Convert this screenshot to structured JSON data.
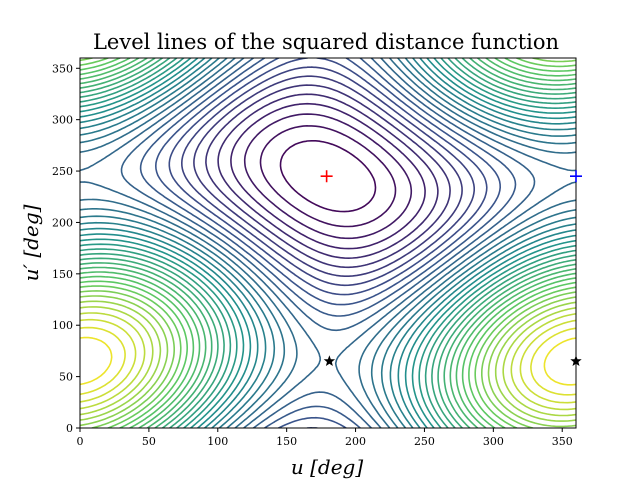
{
  "chart_data": {
    "type": "contour",
    "title": "Level lines of the squared distance function",
    "xlabel": "u [deg]",
    "ylabel": "u′ [deg]",
    "xlim": [
      0,
      360
    ],
    "ylim": [
      0,
      360
    ],
    "xticks": [
      "0",
      "50",
      "100",
      "150",
      "200",
      "250",
      "300",
      "350"
    ],
    "yticks": [
      "0",
      "50",
      "100",
      "150",
      "200",
      "250",
      "300",
      "350"
    ],
    "colormap": [
      "#440154",
      "#3b528b",
      "#21918c",
      "#5ec962",
      "#fde725"
    ],
    "grid": false,
    "markers": [
      {
        "name": "maximum",
        "symbol": "plus",
        "color": "#ff0000",
        "x": 179,
        "y": 245
      },
      {
        "name": "absolute-minimum",
        "symbol": "plus",
        "color": "#0000ff",
        "x": 360,
        "y": 245
      },
      {
        "name": "saddle-1",
        "symbol": "star",
        "color": "#000000",
        "x": 181,
        "y": 65
      },
      {
        "name": "saddle-2",
        "symbol": "star",
        "color": "#000000",
        "x": 360,
        "y": 65
      }
    ]
  }
}
